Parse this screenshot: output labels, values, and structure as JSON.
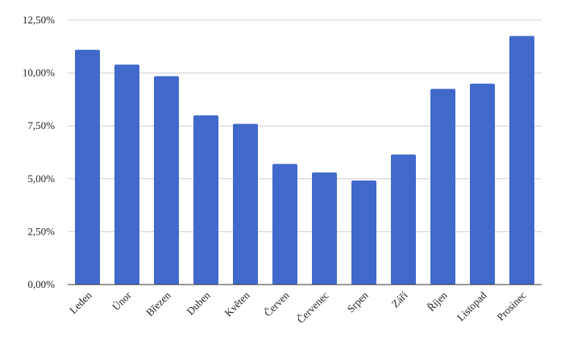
{
  "chart_data": {
    "type": "bar",
    "categories": [
      "Leden",
      "Únor",
      "Březen",
      "Duben",
      "Květen",
      "Červen",
      "Červenec",
      "Srpen",
      "Září",
      "Říjen",
      "Listopad",
      "Prosinec"
    ],
    "series": [
      {
        "values": [
          11.1,
          10.4,
          9.85,
          8.0,
          7.6,
          5.7,
          5.3,
          4.92,
          6.15,
          9.25,
          9.5,
          11.75
        ]
      }
    ],
    "ylim": [
      0,
      12.5
    ],
    "yticks": [
      "0,00%",
      "2,50%",
      "5,00%",
      "7,50%",
      "10,00%",
      "12,50%"
    ],
    "ytick_values": [
      0,
      2.5,
      5,
      7.5,
      10,
      12.5
    ],
    "grid": true,
    "bar_color": "#4169cc",
    "title": "",
    "xlabel": "",
    "ylabel": ""
  }
}
